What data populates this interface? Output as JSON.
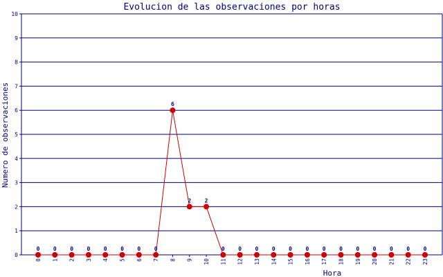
{
  "chart_data": {
    "type": "line",
    "title": "Evolucion de las observaciones por horas",
    "xlabel": "Hora",
    "ylabel": "Numero de observaciones",
    "categories": [
      "0",
      "1",
      "2",
      "3",
      "4",
      "5",
      "6",
      "7",
      "8",
      "9",
      "10",
      "11",
      "12",
      "13",
      "14",
      "15",
      "16",
      "17",
      "18",
      "19",
      "20",
      "21",
      "22",
      "23"
    ],
    "values": [
      0,
      0,
      0,
      0,
      0,
      0,
      0,
      0,
      6,
      2,
      2,
      0,
      0,
      0,
      0,
      0,
      0,
      0,
      0,
      0,
      0,
      0,
      0,
      0
    ],
    "ylim": [
      0,
      10
    ],
    "yticks": [
      "0",
      "1",
      "2",
      "3",
      "4",
      "5",
      "6",
      "7",
      "8",
      "9",
      "10"
    ],
    "grid": true,
    "colors": {
      "line": "#cc0000",
      "marker": "#cc0000",
      "grid": "#000080",
      "text": "#000080"
    }
  }
}
